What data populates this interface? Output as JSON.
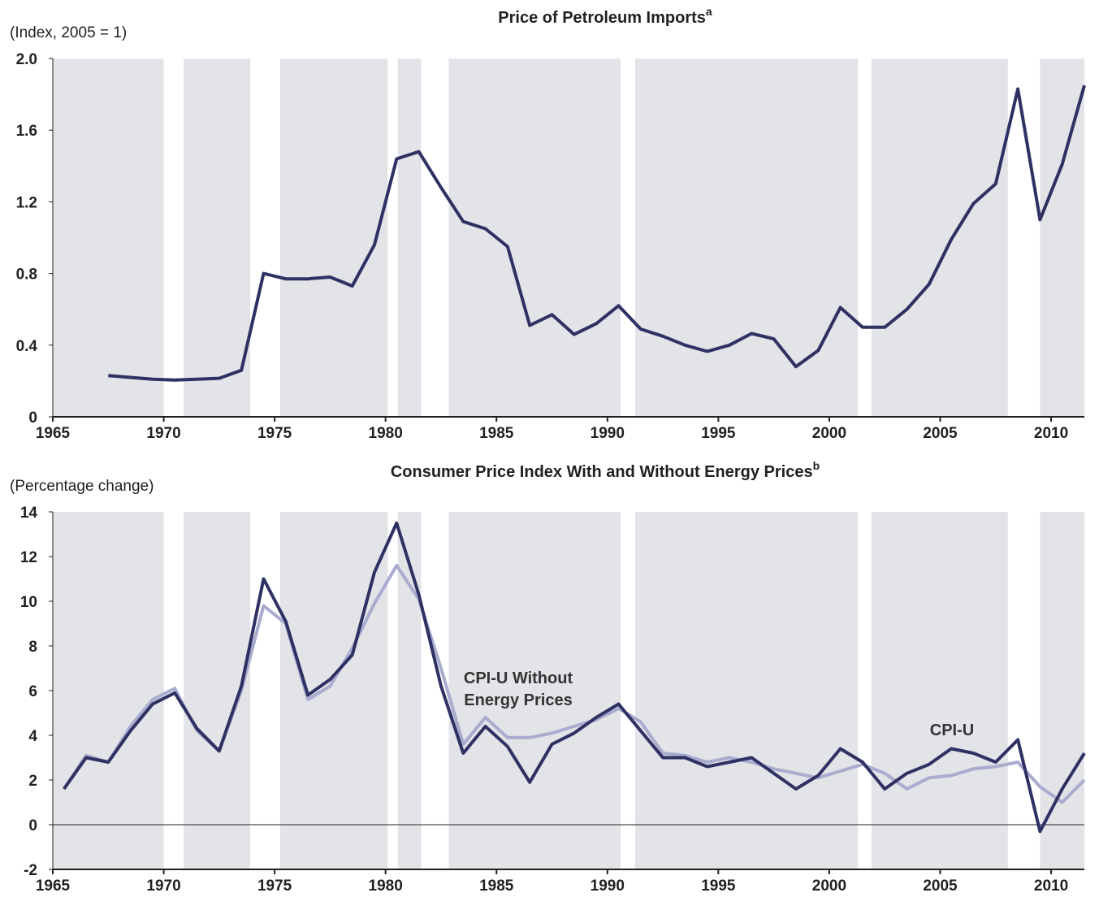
{
  "chart_data": [
    {
      "type": "line",
      "title": "Price of Petroleum Imports",
      "title_note": "a",
      "y_label": "(Index, 2005 = 1)",
      "x": [
        1967.5,
        1968.5,
        1969.5,
        1970.5,
        1971.5,
        1972.5,
        1973.5,
        1974.5,
        1975.5,
        1976.5,
        1977.5,
        1978.5,
        1979.5,
        1980.5,
        1981.5,
        1982.5,
        1983.5,
        1984.5,
        1985.5,
        1986.5,
        1987.5,
        1988.5,
        1989.5,
        1990.5,
        1991.5,
        1992.5,
        1993.5,
        1994.5,
        1995.5,
        1996.5,
        1997.5,
        1998.5,
        1999.5,
        2000.5,
        2001.5,
        2002.5,
        2003.5,
        2004.5,
        2005.5,
        2006.5,
        2007.5,
        2008.5,
        2009.5,
        2010.5,
        2011.5
      ],
      "values": [
        0.23,
        0.22,
        0.21,
        0.205,
        0.21,
        0.215,
        0.26,
        0.8,
        0.77,
        0.77,
        0.78,
        0.73,
        0.96,
        1.44,
        1.48,
        1.28,
        1.09,
        1.05,
        0.95,
        0.51,
        0.57,
        0.46,
        0.52,
        0.62,
        0.49,
        0.45,
        0.4,
        0.365,
        0.4,
        0.465,
        0.435,
        0.28,
        0.37,
        0.61,
        0.5,
        0.5,
        0.6,
        0.74,
        0.99,
        1.19,
        1.3,
        1.83,
        1.1,
        1.41,
        1.85
      ],
      "color": "#2e3163",
      "xlim": [
        1965,
        2011.5
      ],
      "xticks": [
        1965,
        1970,
        1975,
        1980,
        1985,
        1990,
        1995,
        2000,
        2005,
        2010
      ],
      "ylim": [
        0,
        2
      ],
      "yticks": [
        0,
        0.4,
        0.8,
        1.2,
        1.6,
        {
          "value": 2,
          "label": "2.0"
        }
      ],
      "recessions": [
        [
          1970.0,
          1970.9
        ],
        [
          1973.9,
          1975.25
        ],
        [
          1980.1,
          1980.55
        ],
        [
          1981.6,
          1982.85
        ],
        [
          1990.6,
          1991.25
        ],
        [
          2001.3,
          2001.9
        ],
        [
          2008.05,
          2009.5
        ]
      ]
    },
    {
      "type": "line",
      "title": "Consumer Price Index With and Without Energy Prices",
      "title_note": "b",
      "y_label": "(Percentage change)",
      "x": [
        1965.5,
        1966.5,
        1967.5,
        1968.5,
        1969.5,
        1970.5,
        1971.5,
        1972.5,
        1973.5,
        1974.5,
        1975.5,
        1976.5,
        1977.5,
        1978.5,
        1979.5,
        1980.5,
        1981.5,
        1982.5,
        1983.5,
        1984.5,
        1985.5,
        1986.5,
        1987.5,
        1988.5,
        1989.5,
        1990.5,
        1991.5,
        1992.5,
        1993.5,
        1994.5,
        1995.5,
        1996.5,
        1997.5,
        1998.5,
        1999.5,
        2000.5,
        2001.5,
        2002.5,
        2003.5,
        2004.5,
        2005.5,
        2006.5,
        2007.5,
        2008.5,
        2009.5,
        2010.5,
        2011.5
      ],
      "series": [
        {
          "name": "CPI-U",
          "color": "#2e3163",
          "values": [
            1.6,
            3.0,
            2.8,
            4.2,
            5.4,
            5.9,
            4.3,
            3.3,
            6.2,
            11.0,
            9.1,
            5.8,
            6.5,
            7.6,
            11.3,
            13.5,
            10.3,
            6.2,
            3.2,
            4.4,
            3.5,
            1.9,
            3.6,
            4.1,
            4.8,
            5.4,
            4.2,
            3.0,
            3.0,
            2.6,
            2.8,
            3.0,
            2.3,
            1.6,
            2.2,
            3.4,
            2.8,
            1.6,
            2.3,
            2.7,
            3.4,
            3.2,
            2.8,
            3.8,
            -0.3,
            1.6,
            3.2
          ]
        },
        {
          "name": "CPI-U Without Energy Prices",
          "color": "#a9accf",
          "values": [
            1.6,
            3.1,
            2.8,
            4.4,
            5.6,
            6.1,
            4.2,
            3.3,
            6.0,
            9.8,
            9.0,
            5.6,
            6.2,
            7.9,
            9.9,
            11.6,
            10.1,
            7.0,
            3.6,
            4.8,
            3.9,
            3.9,
            4.1,
            4.4,
            4.7,
            5.2,
            4.6,
            3.2,
            3.1,
            2.8,
            3.0,
            2.8,
            2.5,
            2.3,
            2.1,
            2.4,
            2.7,
            2.3,
            1.6,
            2.1,
            2.2,
            2.5,
            2.6,
            2.8,
            1.7,
            1.0,
            2.0
          ]
        }
      ],
      "xlim": [
        1965,
        2011.5
      ],
      "xticks": [
        1965,
        1970,
        1975,
        1980,
        1985,
        1990,
        1995,
        2000,
        2005,
        2010
      ],
      "ylim": [
        -2,
        14
      ],
      "yticks": [
        -2,
        0,
        2,
        4,
        6,
        8,
        10,
        12,
        14
      ],
      "recessions": [
        [
          1970.0,
          1970.9
        ],
        [
          1973.9,
          1975.25
        ],
        [
          1980.1,
          1980.55
        ],
        [
          1981.6,
          1982.85
        ],
        [
          1990.6,
          1991.25
        ],
        [
          2001.3,
          2001.9
        ],
        [
          2008.05,
          2009.5
        ]
      ]
    }
  ]
}
